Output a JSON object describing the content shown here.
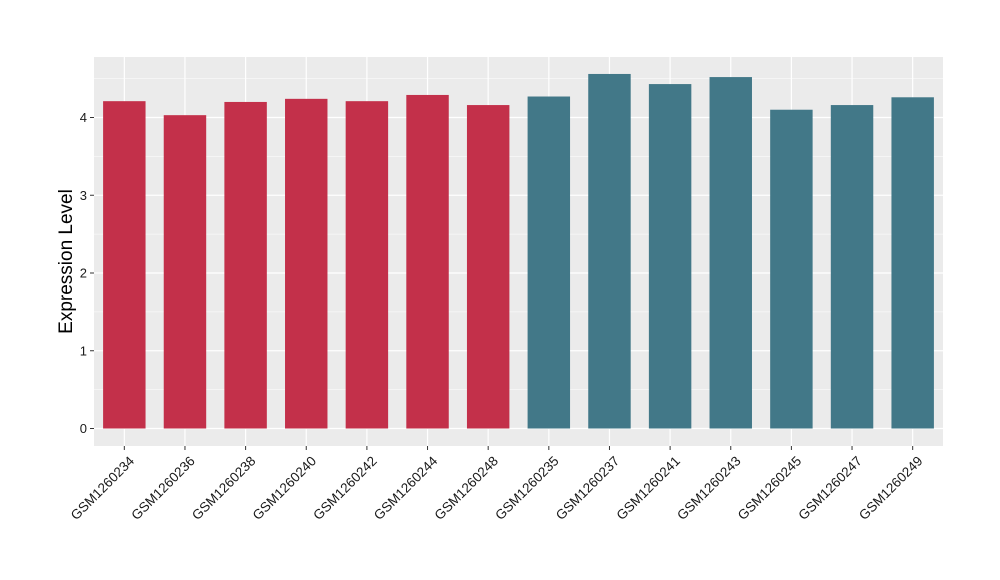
{
  "chart_data": {
    "type": "bar",
    "title": "",
    "xlabel": "",
    "ylabel": "Expression Level",
    "ylim": [
      0,
      4.8
    ],
    "yticks": [
      0,
      1,
      2,
      3,
      4
    ],
    "grid": true,
    "legend": "none",
    "colors": {
      "group1": "#C3304A",
      "group2": "#427888",
      "panel": "#EBEBEB",
      "grid": "#FFFFFF"
    },
    "categories": [
      "GSM1260234",
      "GSM1260236",
      "GSM1260238",
      "GSM1260240",
      "GSM1260242",
      "GSM1260244",
      "GSM1260248",
      "GSM1260235",
      "GSM1260237",
      "GSM1260241",
      "GSM1260243",
      "GSM1260245",
      "GSM1260247",
      "GSM1260249"
    ],
    "values": [
      4.21,
      4.03,
      4.2,
      4.24,
      4.21,
      4.29,
      4.16,
      4.27,
      4.56,
      4.43,
      4.52,
      4.1,
      4.16,
      4.26
    ],
    "groups": [
      "group1",
      "group1",
      "group1",
      "group1",
      "group1",
      "group1",
      "group1",
      "group2",
      "group2",
      "group2",
      "group2",
      "group2",
      "group2",
      "group2"
    ]
  }
}
